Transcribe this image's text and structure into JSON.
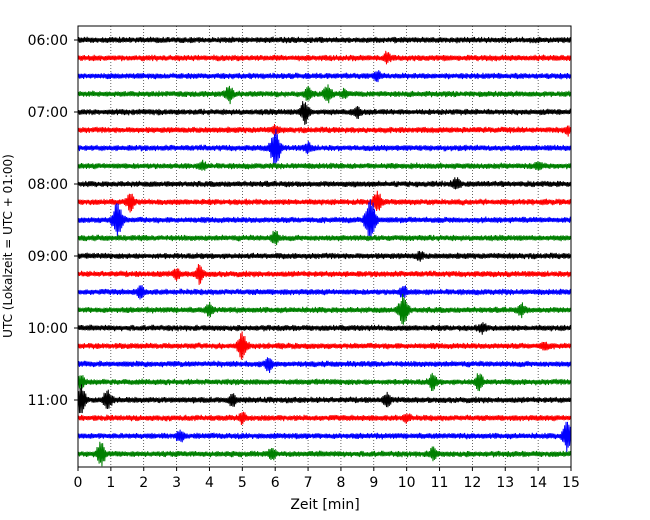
{
  "chart_data": {
    "type": "line",
    "xlabel": "Zeit  [min]",
    "ylabel": "UTC (Lokalzeit = UTC + 01:00)",
    "xlim": [
      0,
      15
    ],
    "xticks": [
      "0",
      "1",
      "2",
      "3",
      "4",
      "5",
      "6",
      "7",
      "8",
      "9",
      "10",
      "11",
      "12",
      "13",
      "14",
      "15"
    ],
    "yticks": [
      "06:00",
      "07:00",
      "08:00",
      "09:00",
      "10:00",
      "11:00"
    ],
    "grid": "vertical dotted lines at each minute",
    "trace_interval_minutes": 15,
    "colors": [
      "#000000",
      "#ff0000",
      "#0000ff",
      "#008000"
    ],
    "traces": [
      {
        "start": "06:00",
        "color": "#000000",
        "events": []
      },
      {
        "start": "06:15",
        "color": "#ff0000",
        "events": [
          {
            "t": 9.4,
            "amp": 0.5
          }
        ]
      },
      {
        "start": "06:30",
        "color": "#0000ff",
        "events": [
          {
            "t": 9.1,
            "amp": 0.4
          }
        ]
      },
      {
        "start": "06:45",
        "color": "#008000",
        "events": [
          {
            "t": 4.6,
            "amp": 0.9
          },
          {
            "t": 7.0,
            "amp": 0.6
          },
          {
            "t": 7.6,
            "amp": 0.9
          },
          {
            "t": 8.1,
            "amp": 0.4
          }
        ]
      },
      {
        "start": "07:00",
        "color": "#000000",
        "events": [
          {
            "t": 6.9,
            "amp": 1.2
          },
          {
            "t": 8.5,
            "amp": 0.5
          }
        ]
      },
      {
        "start": "07:15",
        "color": "#ff0000",
        "events": [
          {
            "t": 6.0,
            "amp": 0.4
          },
          {
            "t": 14.9,
            "amp": 0.4
          }
        ]
      },
      {
        "start": "07:30",
        "color": "#0000ff",
        "events": [
          {
            "t": 6.0,
            "amp": 1.9
          },
          {
            "t": 7.0,
            "amp": 0.5
          }
        ]
      },
      {
        "start": "07:45",
        "color": "#008000",
        "events": [
          {
            "t": 3.8,
            "amp": 0.4
          },
          {
            "t": 14.0,
            "amp": 0.4
          }
        ]
      },
      {
        "start": "08:00",
        "color": "#000000",
        "events": [
          {
            "t": 11.5,
            "amp": 0.6
          }
        ]
      },
      {
        "start": "08:15",
        "color": "#ff0000",
        "events": [
          {
            "t": 1.6,
            "amp": 0.9
          },
          {
            "t": 9.1,
            "amp": 1.1
          }
        ]
      },
      {
        "start": "08:30",
        "color": "#0000ff",
        "events": [
          {
            "t": 1.2,
            "amp": 1.9
          },
          {
            "t": 8.9,
            "amp": 2.2
          }
        ]
      },
      {
        "start": "08:45",
        "color": "#008000",
        "events": [
          {
            "t": 6.0,
            "amp": 0.7
          }
        ]
      },
      {
        "start": "09:00",
        "color": "#000000",
        "events": [
          {
            "t": 10.4,
            "amp": 0.4
          }
        ]
      },
      {
        "start": "09:15",
        "color": "#ff0000",
        "events": [
          {
            "t": 3.0,
            "amp": 0.5
          },
          {
            "t": 3.7,
            "amp": 0.9
          }
        ]
      },
      {
        "start": "09:30",
        "color": "#0000ff",
        "events": [
          {
            "t": 1.9,
            "amp": 0.6
          },
          {
            "t": 9.9,
            "amp": 0.6
          }
        ]
      },
      {
        "start": "09:45",
        "color": "#008000",
        "events": [
          {
            "t": 4.0,
            "amp": 0.6
          },
          {
            "t": 9.9,
            "amp": 1.6
          },
          {
            "t": 13.5,
            "amp": 0.6
          }
        ]
      },
      {
        "start": "10:00",
        "color": "#000000",
        "events": [
          {
            "t": 12.3,
            "amp": 0.5
          }
        ]
      },
      {
        "start": "10:15",
        "color": "#ff0000",
        "events": [
          {
            "t": 5.0,
            "amp": 1.4
          },
          {
            "t": 14.2,
            "amp": 0.4
          }
        ]
      },
      {
        "start": "10:30",
        "color": "#0000ff",
        "events": [
          {
            "t": 5.8,
            "amp": 0.7
          }
        ]
      },
      {
        "start": "10:45",
        "color": "#008000",
        "events": [
          {
            "t": 0.1,
            "amp": 0.7
          },
          {
            "t": 10.8,
            "amp": 0.8
          },
          {
            "t": 12.2,
            "amp": 0.9
          }
        ]
      },
      {
        "start": "11:00",
        "color": "#000000",
        "events": [
          {
            "t": 0.1,
            "amp": 1.5
          },
          {
            "t": 0.9,
            "amp": 1.1
          },
          {
            "t": 4.7,
            "amp": 0.6
          },
          {
            "t": 9.4,
            "amp": 0.6
          }
        ]
      },
      {
        "start": "11:15",
        "color": "#ff0000",
        "events": [
          {
            "t": 5.0,
            "amp": 0.5
          },
          {
            "t": 10.0,
            "amp": 0.4
          }
        ]
      },
      {
        "start": "11:30",
        "color": "#0000ff",
        "events": [
          {
            "t": 3.1,
            "amp": 0.6
          },
          {
            "t": 14.9,
            "amp": 1.6
          }
        ]
      },
      {
        "start": "11:45",
        "color": "#008000",
        "events": [
          {
            "t": 0.7,
            "amp": 1.2
          },
          {
            "t": 5.9,
            "amp": 0.6
          },
          {
            "t": 10.8,
            "amp": 0.6
          }
        ]
      }
    ]
  }
}
